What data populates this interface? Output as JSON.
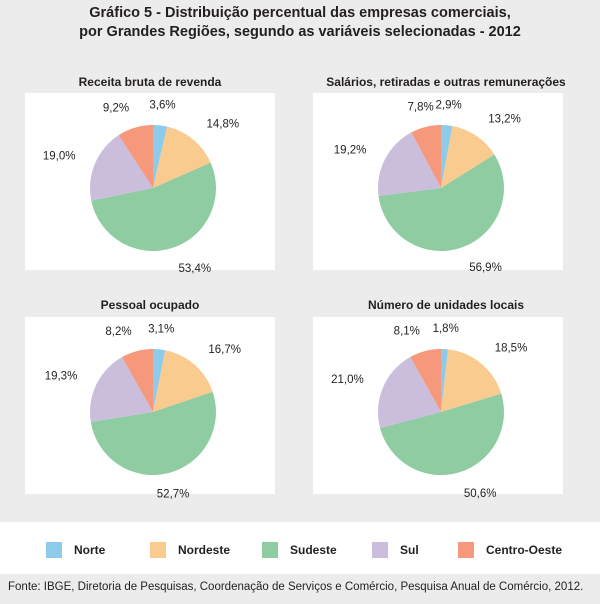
{
  "title_lines": [
    "Gráfico 5 - Distribuição percentual das empresas comerciais,",
    "por Grandes Regiões, segundo as variáveis selecionadas - 2012"
  ],
  "colors": {
    "Norte": "#8ecae9",
    "Nordeste": "#f9cb8e",
    "Sudeste": "#8fcca2",
    "Sul": "#cbbedd",
    "Centro-Oeste": "#f5987c"
  },
  "legend": [
    "Norte",
    "Nordeste",
    "Sudeste",
    "Sul",
    "Centro-Oeste"
  ],
  "chart_data": [
    {
      "type": "pie",
      "title": "Receita bruta de revenda",
      "categories": [
        "Norte",
        "Nordeste",
        "Sudeste",
        "Sul",
        "Centro-Oeste"
      ],
      "values": [
        3.6,
        14.8,
        53.4,
        19.0,
        9.2
      ],
      "labels": [
        "3,6%",
        "14,8%",
        "53,4%",
        "19,0%",
        "9,2%"
      ]
    },
    {
      "type": "pie",
      "title": "Salários, retiradas e outras remunerações",
      "categories": [
        "Norte",
        "Nordeste",
        "Sudeste",
        "Sul",
        "Centro-Oeste"
      ],
      "values": [
        2.9,
        13.2,
        56.9,
        19.2,
        7.8
      ],
      "labels": [
        "2,9%",
        "13,2%",
        "56,9%",
        "19,2%",
        "7,8%"
      ]
    },
    {
      "type": "pie",
      "title": "Pessoal ocupado",
      "categories": [
        "Norte",
        "Nordeste",
        "Sudeste",
        "Sul",
        "Centro-Oeste"
      ],
      "values": [
        3.1,
        16.7,
        52.7,
        19.3,
        8.2
      ],
      "labels": [
        "3,1%",
        "16,7%",
        "52,7%",
        "19,3%",
        "8,2%"
      ]
    },
    {
      "type": "pie",
      "title": "Número de unidades locais",
      "categories": [
        "Norte",
        "Nordeste",
        "Sudeste",
        "Sul",
        "Centro-Oeste"
      ],
      "values": [
        1.8,
        18.5,
        50.6,
        21.0,
        8.1
      ],
      "labels": [
        "1,8%",
        "18,5%",
        "50,6%",
        "21,0%",
        "8,1%"
      ]
    }
  ],
  "source": "Fonte: IBGE, Diretoria de Pesquisas, Coordenação de Serviços e Comércio, Pesquisa Anual de Comércio, 2012."
}
